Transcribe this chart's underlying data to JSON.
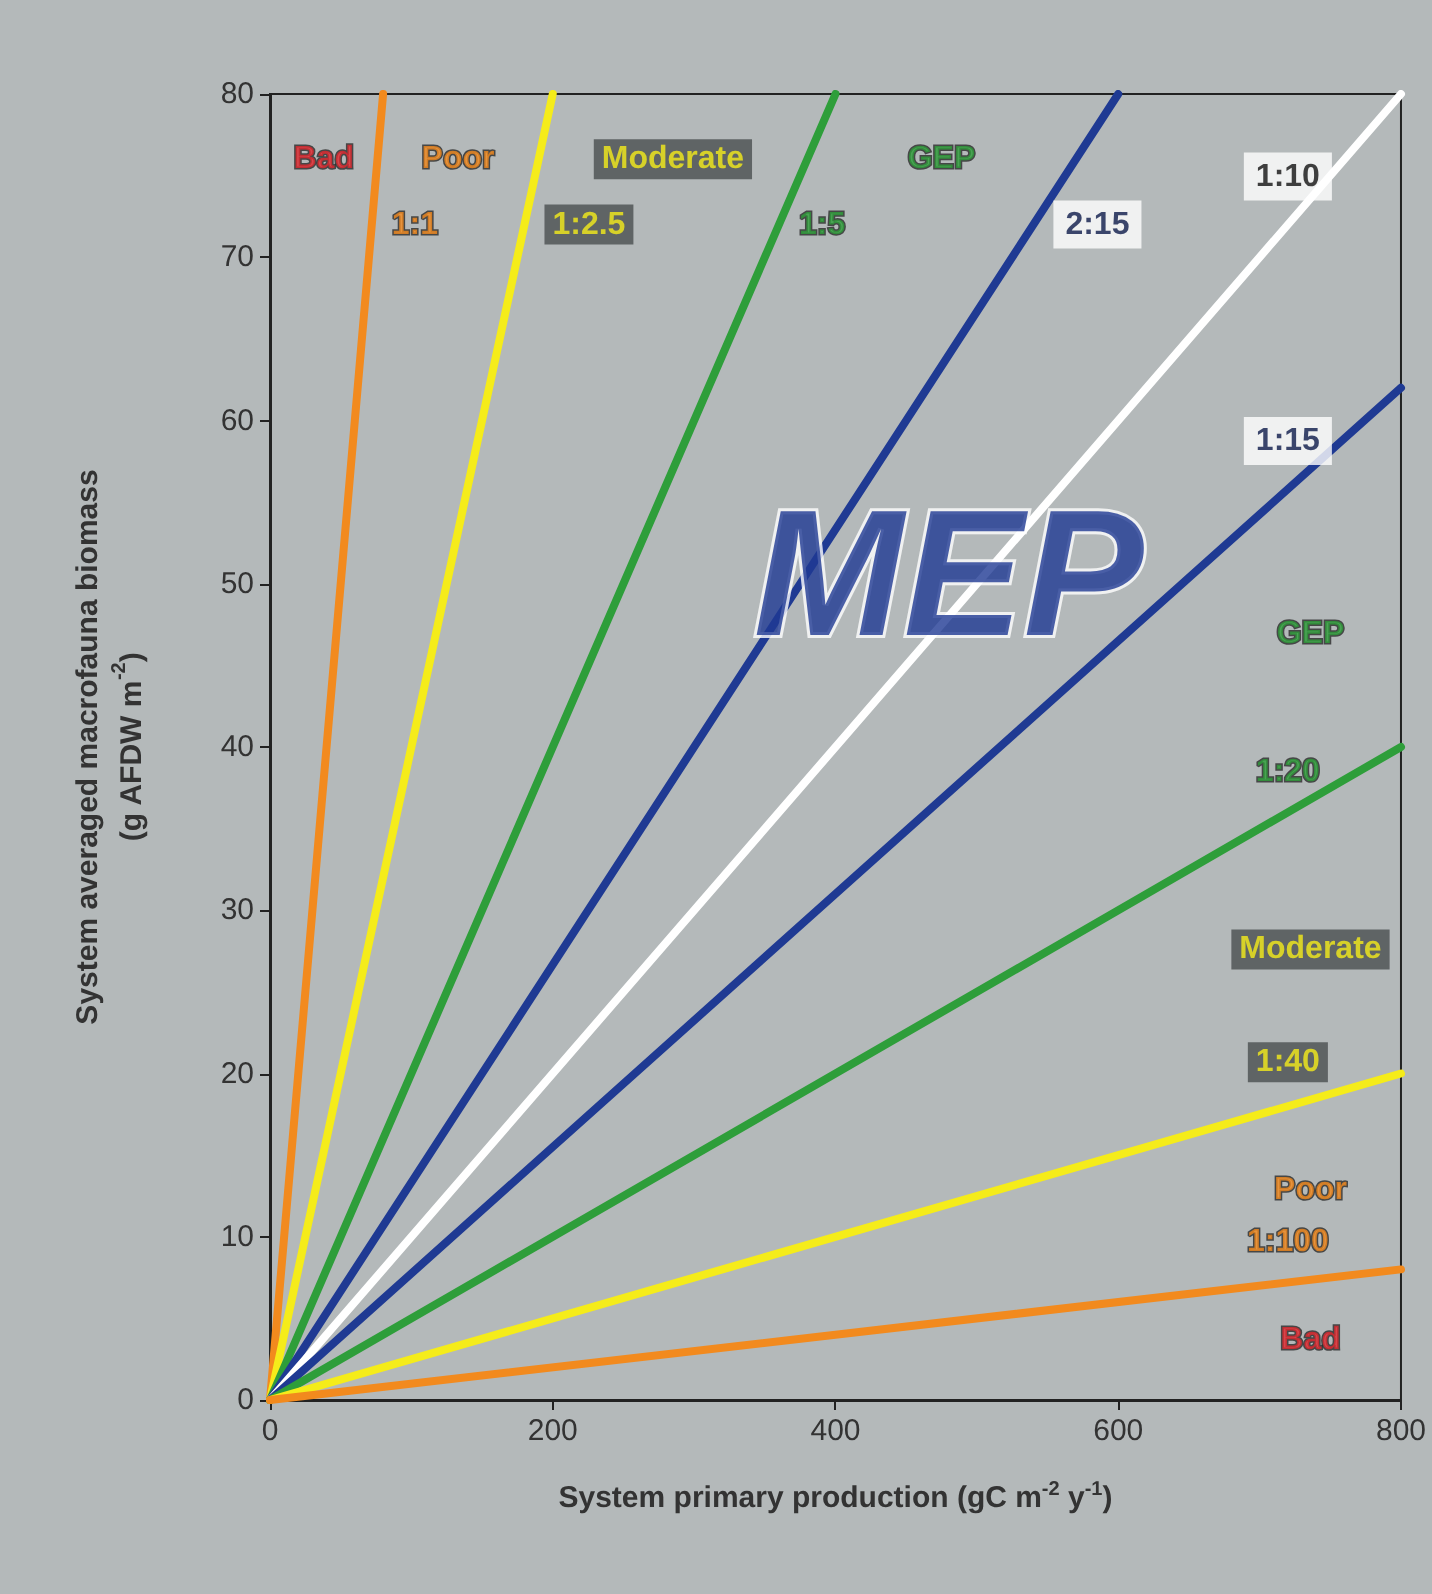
{
  "chart_data": {
    "type": "line",
    "xlabel": "System primary production (gC m$^{-2}$ y$^{-1}$)",
    "ylabel": "System averaged macrofauna biomass\n(g AFDW m$^{-2}$)",
    "xlim": [
      0,
      800
    ],
    "xticks": [
      0,
      200,
      400,
      600,
      800
    ],
    "ylim": [
      0,
      80
    ],
    "yticks": [
      0,
      10,
      20,
      30,
      40,
      50,
      60,
      70,
      80
    ],
    "grid": false,
    "marker": "none",
    "line_style": "solid",
    "legend": false,
    "series": [
      {
        "name": "1:1",
        "color": "#f28a1e",
        "x": [
          0,
          80
        ],
        "values": [
          0,
          80
        ]
      },
      {
        "name": "1:2.5",
        "color": "#f5ec1a",
        "x": [
          0,
          200
        ],
        "values": [
          0,
          80
        ]
      },
      {
        "name": "1:5",
        "color": "#2e9e3a",
        "x": [
          0,
          400
        ],
        "values": [
          0,
          80
        ]
      },
      {
        "name": "2:15",
        "color": "#1f3a93",
        "x": [
          0,
          600
        ],
        "values": [
          0,
          80
        ]
      },
      {
        "name": "1:10",
        "color": "#ffffff",
        "x": [
          0,
          800
        ],
        "values": [
          0,
          80
        ]
      },
      {
        "name": "1:15",
        "color": "#1f3a93",
        "x": [
          0,
          800
        ],
        "values": [
          0,
          62
        ]
      },
      {
        "name": "1:20",
        "color": "#2e9e3a",
        "x": [
          0,
          800
        ],
        "values": [
          0,
          40
        ]
      },
      {
        "name": "1:40",
        "color": "#f5ec1a",
        "x": [
          0,
          800
        ],
        "values": [
          0,
          20
        ]
      },
      {
        "name": "1:100",
        "color": "#f28a1e",
        "x": [
          0,
          800
        ],
        "values": [
          0,
          8
        ]
      }
    ],
    "annotations": [
      "Bad",
      "Poor",
      "Moderate",
      "GEP",
      "MEP",
      "GEP",
      "Moderate",
      "Poor",
      "Bad"
    ]
  }
}
